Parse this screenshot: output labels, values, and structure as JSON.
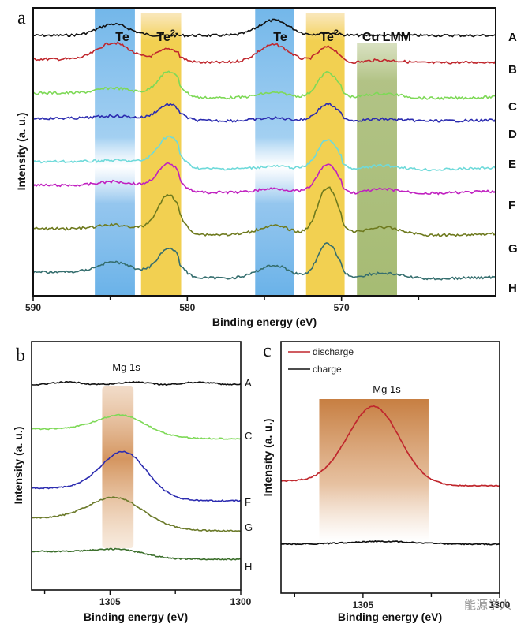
{
  "chart_data": [
    {
      "panel": "a",
      "type": "line",
      "title": "",
      "xlabel": "Binding energy (eV)",
      "ylabel": "Intensity (a. u.)",
      "xlim": [
        590,
        560
      ],
      "x_reversed": true,
      "xticks": [
        590,
        580,
        570
      ],
      "minor_xticks": [
        585,
        575,
        565
      ],
      "bands": [
        {
          "label": "Te",
          "x_range": [
            586,
            583.4
          ],
          "color": "#5aaae6"
        },
        {
          "label": "Te2-",
          "sup": "2-",
          "base": "Te",
          "x_range": [
            583,
            580.4
          ],
          "color": "#f0c832"
        },
        {
          "label": "Te",
          "x_range": [
            575.6,
            573.1
          ],
          "color": "#5aaae6"
        },
        {
          "label": "Te2-",
          "sup": "2-",
          "base": "Te",
          "x_range": [
            572.3,
            569.8
          ],
          "color": "#f0c832"
        },
        {
          "label": "Cu LMM",
          "x_range": [
            569,
            566.4
          ],
          "color": "#9cb464"
        }
      ],
      "series": [
        {
          "name": "A",
          "color": "#111111",
          "peaks": [
            [
              584.8,
              0.9
            ],
            [
              574.4,
              1.2
            ],
            [
              570.9,
              0.2
            ]
          ]
        },
        {
          "name": "B",
          "color": "#c0272d",
          "peaks": [
            [
              584.8,
              1.3
            ],
            [
              581.2,
              0.8
            ],
            [
              574.4,
              1.4
            ],
            [
              570.9,
              1.2
            ],
            [
              567.5,
              0.3
            ]
          ]
        },
        {
          "name": "C",
          "color": "#7ed957",
          "peaks": [
            [
              584.8,
              0.4
            ],
            [
              581.2,
              1.7
            ],
            [
              574.4,
              0.4
            ],
            [
              570.9,
              2.0
            ],
            [
              567.5,
              0.5
            ]
          ]
        },
        {
          "name": "D",
          "color": "#2c2cb0",
          "peaks": [
            [
              584.8,
              0.2
            ],
            [
              581.2,
              1.1
            ],
            [
              574.4,
              0.2
            ],
            [
              570.9,
              1.3
            ],
            [
              567.5,
              0.2
            ]
          ]
        },
        {
          "name": "E",
          "color": "#6fdada",
          "peaks": [
            [
              584.8,
              0.1
            ],
            [
              581.2,
              2.0
            ],
            [
              574.4,
              0.2
            ],
            [
              570.9,
              2.3
            ],
            [
              567.5,
              0.5
            ]
          ]
        },
        {
          "name": "F",
          "color": "#c020c0",
          "peaks": [
            [
              584.8,
              0.3
            ],
            [
              581.2,
              1.7
            ],
            [
              574.4,
              0.3
            ],
            [
              570.9,
              2.2
            ],
            [
              567.5,
              0.5
            ]
          ]
        },
        {
          "name": "G",
          "color": "#6e7a1e",
          "peaks": [
            [
              584.8,
              0.3
            ],
            [
              581.2,
              2.7
            ],
            [
              574.4,
              0.7
            ],
            [
              570.9,
              3.7
            ],
            [
              567.5,
              0.8
            ]
          ]
        },
        {
          "name": "H",
          "color": "#356e6e",
          "peaks": [
            [
              584.8,
              0.8
            ],
            [
              581.2,
              1.9
            ],
            [
              574.4,
              1.0
            ],
            [
              570.9,
              2.7
            ],
            [
              567.5,
              0.6
            ]
          ]
        }
      ]
    },
    {
      "panel": "b",
      "type": "line",
      "title": "Mg 1s",
      "xlabel": "Binding energy (eV)",
      "ylabel": "Intensity (a. u.)",
      "xlim": [
        1308,
        1300
      ],
      "x_reversed": true,
      "xticks": [
        1305,
        1300
      ],
      "minor_xticks": [
        1307.5,
        1302.5
      ],
      "band": {
        "x_range": [
          1305.3,
          1304.1
        ],
        "color": "#c87a3c"
      },
      "series": [
        {
          "name": "A",
          "color": "#111111",
          "peak": [
            1304.4,
            0.0
          ]
        },
        {
          "name": "C",
          "color": "#7ed957",
          "peak": [
            1304.4,
            0.8
          ]
        },
        {
          "name": "F",
          "color": "#2c2cb0",
          "peak": [
            1304.4,
            2.0
          ]
        },
        {
          "name": "G",
          "color": "#6b7a2a",
          "peak": [
            1304.6,
            1.2
          ]
        },
        {
          "name": "H",
          "color": "#3a6e2a",
          "peak": [
            1304.4,
            0.2
          ]
        }
      ]
    },
    {
      "panel": "c",
      "type": "line",
      "title": "Mg 1s",
      "xlabel": "Binding energy (eV)",
      "ylabel": "Intensity (a. u.)",
      "xlim": [
        1308,
        1300
      ],
      "x_reversed": true,
      "xticks": [
        1305,
        1300
      ],
      "minor_xticks": [
        1307.5,
        1302.5
      ],
      "band": {
        "x_range": [
          1306.6,
          1302.6
        ],
        "color": "#c87a3c"
      },
      "legend": {
        "placement": "top-left",
        "entries": [
          "discharge",
          "charge"
        ]
      },
      "series": [
        {
          "name": "discharge",
          "color": "#c0272d",
          "peak": [
            1304.6,
            4.0
          ]
        },
        {
          "name": "charge",
          "color": "#111111",
          "peak": [
            1304.3,
            0.15
          ]
        }
      ]
    }
  ],
  "panels": {
    "a": {
      "letter": "a",
      "xlabel": "Binding energy (eV)",
      "ylabel": "Intensity (a. u.)",
      "tick_labels": [
        "590",
        "580",
        "570"
      ],
      "trace_labels": [
        "A",
        "B",
        "C",
        "D",
        "E",
        "F",
        "G",
        "H"
      ],
      "band_labels": [
        "Te",
        "Te",
        "Te",
        "Te",
        "Cu LMM"
      ],
      "band_sup": "2-"
    },
    "b": {
      "letter": "b",
      "xlabel": "Binding energy (eV)",
      "ylabel": "Intensity (a. u.)",
      "title": "Mg 1s",
      "tick_labels": [
        "1305",
        "1300"
      ],
      "trace_labels": [
        "A",
        "C",
        "F",
        "G",
        "H"
      ]
    },
    "c": {
      "letter": "c",
      "xlabel": "Binding energy (eV)",
      "ylabel": "Intensity (a. u.)",
      "title": "Mg 1s",
      "tick_labels": [
        "1305",
        "1300"
      ],
      "legend": [
        "discharge",
        "charge"
      ]
    }
  },
  "watermark": "能源学人"
}
